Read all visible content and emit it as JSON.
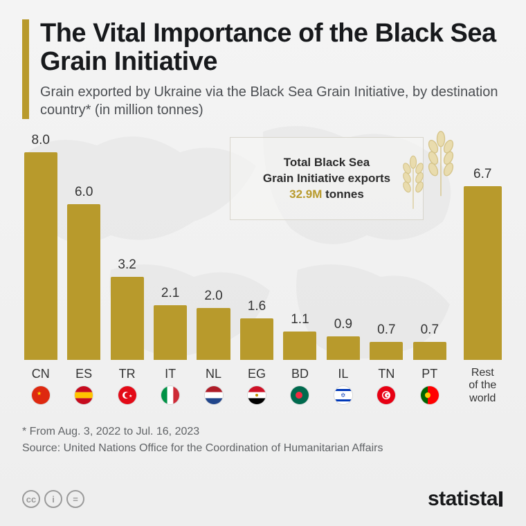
{
  "title": "The Vital Importance of the Black Sea Grain Initiative",
  "subtitle": "Grain exported by Ukraine via the Black Sea Grain Initiative, by destination country* (in million tonnes)",
  "chart": {
    "type": "bar",
    "max_value": 8.0,
    "bar_color": "#b89a2c",
    "accent_color": "#b89a2c",
    "background_color": "#f3f3f3",
    "value_fontsize": 19,
    "label_fontsize": 18,
    "title_fontsize": 38,
    "subtitle_fontsize": 20,
    "bars": [
      {
        "code": "CN",
        "value": 8.0,
        "label": "8.0",
        "flag": "cn"
      },
      {
        "code": "ES",
        "value": 6.0,
        "label": "6.0",
        "flag": "es"
      },
      {
        "code": "TR",
        "value": 3.2,
        "label": "3.2",
        "flag": "tr"
      },
      {
        "code": "IT",
        "value": 2.1,
        "label": "2.1",
        "flag": "it"
      },
      {
        "code": "NL",
        "value": 2.0,
        "label": "2.0",
        "flag": "nl"
      },
      {
        "code": "EG",
        "value": 1.6,
        "label": "1.6",
        "flag": "eg"
      },
      {
        "code": "BD",
        "value": 1.1,
        "label": "1.1",
        "flag": "bd"
      },
      {
        "code": "IL",
        "value": 0.9,
        "label": "0.9",
        "flag": "il"
      },
      {
        "code": "TN",
        "value": 0.7,
        "label": "0.7",
        "flag": "tn"
      },
      {
        "code": "PT",
        "value": 0.7,
        "label": "0.7",
        "flag": "pt"
      }
    ],
    "rest": {
      "code": "Rest of the world",
      "value": 6.7,
      "label": "6.7"
    }
  },
  "callout": {
    "line1": "Total Black Sea",
    "line2": "Grain Initiative exports",
    "value": "32.9M",
    "unit": "tonnes"
  },
  "footnote1": "* From Aug. 3, 2022 to Jul. 16, 2023",
  "footnote2": "Source: United Nations Office for the Coordination of Humanitarian Affairs",
  "logo": "statista",
  "cc_labels": [
    "cc",
    "i",
    "="
  ],
  "flags": {
    "cn": {
      "bg": "#de2910",
      "accent": "#ffde00"
    },
    "es": {
      "top": "#c60b1e",
      "mid": "#ffc400",
      "bot": "#c60b1e"
    },
    "tr": {
      "bg": "#e30a17",
      "accent": "#ffffff"
    },
    "it": {
      "l": "#009246",
      "m": "#ffffff",
      "r": "#ce2b37"
    },
    "nl": {
      "top": "#ae1c28",
      "mid": "#ffffff",
      "bot": "#21468b"
    },
    "eg": {
      "top": "#ce1126",
      "mid": "#ffffff",
      "bot": "#000000",
      "accent": "#c09300"
    },
    "bd": {
      "bg": "#006a4e",
      "accent": "#f42a41"
    },
    "il": {
      "bg": "#ffffff",
      "accent": "#0038b8"
    },
    "tn": {
      "bg": "#e70013",
      "accent": "#ffffff"
    },
    "pt": {
      "l": "#006600",
      "r": "#ff0000",
      "accent": "#ffcc00"
    }
  }
}
